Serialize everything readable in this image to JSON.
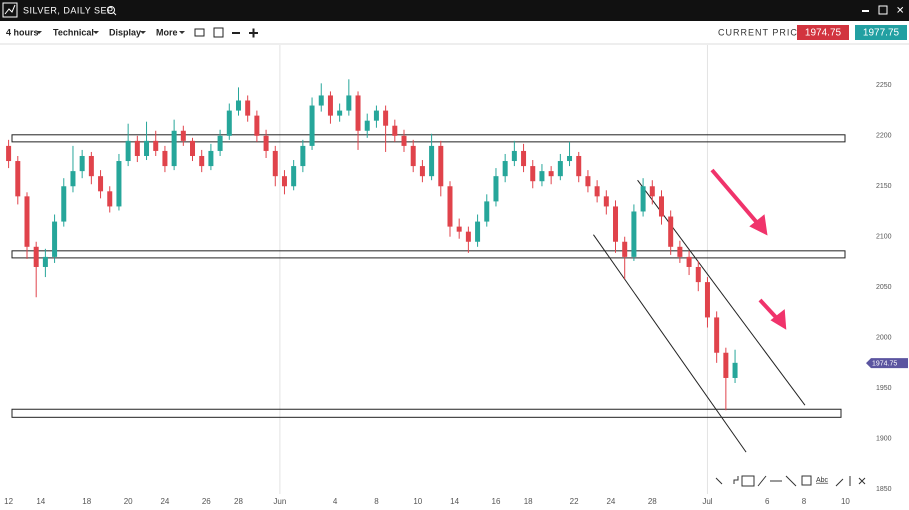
{
  "header": {
    "title": "SILVER, DAILY SEP"
  },
  "toolbar": {
    "interval": "4 hours",
    "menus": [
      "Technical",
      "Display",
      "More"
    ],
    "current_price_label": "CURRENT PRICE:",
    "bid": 1974.75,
    "ask": 1977.75
  },
  "drawing_tools": {
    "text_tool": "Abc"
  },
  "chart_data": {
    "type": "candlestick",
    "candles": [
      [
        2190,
        2196,
        2168,
        2175
      ],
      [
        2175,
        2180,
        2132,
        2140
      ],
      [
        2140,
        2144,
        2078,
        2090
      ],
      [
        2090,
        2095,
        2040,
        2070
      ],
      [
        2070,
        2088,
        2060,
        2080
      ],
      [
        2080,
        2122,
        2074,
        2115
      ],
      [
        2115,
        2158,
        2110,
        2150
      ],
      [
        2150,
        2190,
        2144,
        2165
      ],
      [
        2165,
        2186,
        2158,
        2180
      ],
      [
        2180,
        2184,
        2152,
        2160
      ],
      [
        2160,
        2166,
        2138,
        2145
      ],
      [
        2145,
        2150,
        2124,
        2130
      ],
      [
        2130,
        2182,
        2126,
        2175
      ],
      [
        2175,
        2212,
        2170,
        2195
      ],
      [
        2195,
        2200,
        2174,
        2180
      ],
      [
        2180,
        2214,
        2176,
        2195
      ],
      [
        2195,
        2205,
        2180,
        2185
      ],
      [
        2185,
        2190,
        2164,
        2170
      ],
      [
        2170,
        2216,
        2166,
        2205
      ],
      [
        2205,
        2210,
        2190,
        2195
      ],
      [
        2195,
        2198,
        2175,
        2180
      ],
      [
        2180,
        2186,
        2164,
        2170
      ],
      [
        2170,
        2192,
        2166,
        2185
      ],
      [
        2185,
        2206,
        2180,
        2200
      ],
      [
        2200,
        2232,
        2196,
        2225
      ],
      [
        2225,
        2248,
        2220,
        2235
      ],
      [
        2235,
        2240,
        2214,
        2220
      ],
      [
        2220,
        2225,
        2194,
        2200
      ],
      [
        2200,
        2206,
        2178,
        2185
      ],
      [
        2185,
        2190,
        2150,
        2160
      ],
      [
        2160,
        2166,
        2142,
        2150
      ],
      [
        2150,
        2176,
        2146,
        2170
      ],
      [
        2170,
        2196,
        2164,
        2190
      ],
      [
        2190,
        2238,
        2186,
        2230
      ],
      [
        2230,
        2252,
        2224,
        2240
      ],
      [
        2240,
        2244,
        2212,
        2220
      ],
      [
        2220,
        2232,
        2214,
        2225
      ],
      [
        2225,
        2256,
        2220,
        2240
      ],
      [
        2240,
        2244,
        2186,
        2205
      ],
      [
        2205,
        2222,
        2198,
        2215
      ],
      [
        2215,
        2230,
        2208,
        2225
      ],
      [
        2225,
        2230,
        2184,
        2210
      ],
      [
        2210,
        2216,
        2194,
        2200
      ],
      [
        2200,
        2206,
        2184,
        2190
      ],
      [
        2190,
        2196,
        2164,
        2170
      ],
      [
        2170,
        2176,
        2154,
        2160
      ],
      [
        2160,
        2202,
        2156,
        2190
      ],
      [
        2190,
        2195,
        2140,
        2150
      ],
      [
        2150,
        2155,
        2100,
        2110
      ],
      [
        2110,
        2118,
        2098,
        2105
      ],
      [
        2105,
        2110,
        2084,
        2095
      ],
      [
        2095,
        2122,
        2090,
        2115
      ],
      [
        2115,
        2142,
        2110,
        2135
      ],
      [
        2135,
        2168,
        2130,
        2160
      ],
      [
        2160,
        2182,
        2154,
        2175
      ],
      [
        2175,
        2195,
        2170,
        2185
      ],
      [
        2185,
        2192,
        2164,
        2170
      ],
      [
        2170,
        2176,
        2148,
        2155
      ],
      [
        2155,
        2172,
        2150,
        2165
      ],
      [
        2165,
        2170,
        2152,
        2160
      ],
      [
        2160,
        2182,
        2156,
        2175
      ],
      [
        2175,
        2194,
        2170,
        2180
      ],
      [
        2180,
        2184,
        2154,
        2160
      ],
      [
        2160,
        2166,
        2144,
        2150
      ],
      [
        2150,
        2156,
        2134,
        2140
      ],
      [
        2140,
        2146,
        2122,
        2130
      ],
      [
        2130,
        2136,
        2084,
        2095
      ],
      [
        2095,
        2100,
        2058,
        2080
      ],
      [
        2080,
        2132,
        2076,
        2125
      ],
      [
        2125,
        2158,
        2120,
        2150
      ],
      [
        2150,
        2156,
        2132,
        2140
      ],
      [
        2140,
        2146,
        2112,
        2120
      ],
      [
        2120,
        2126,
        2082,
        2090
      ],
      [
        2090,
        2096,
        2074,
        2080
      ],
      [
        2080,
        2086,
        2062,
        2070
      ],
      [
        2070,
        2076,
        2046,
        2055
      ],
      [
        2055,
        2060,
        2010,
        2020
      ],
      [
        2020,
        2026,
        1975,
        1985
      ],
      [
        1985,
        1990,
        1928,
        1960
      ],
      [
        1960,
        1988,
        1955,
        1975
      ]
    ],
    "up_color": "#26a69a",
    "down_color": "#e0434b",
    "xlim": [
      0,
      92
    ],
    "xticks": [
      {
        "value": 0.5,
        "label": "12"
      },
      {
        "value": 4,
        "label": "14"
      },
      {
        "value": 9,
        "label": "18"
      },
      {
        "value": 13.5,
        "label": "20"
      },
      {
        "value": 17.5,
        "label": "24"
      },
      {
        "value": 22,
        "label": "26"
      },
      {
        "value": 25.5,
        "label": "28"
      },
      {
        "value": 30,
        "label": "Jun"
      },
      {
        "value": 36,
        "label": "4"
      },
      {
        "value": 40.5,
        "label": "8"
      },
      {
        "value": 45,
        "label": "10"
      },
      {
        "value": 49,
        "label": "14"
      },
      {
        "value": 53.5,
        "label": "16"
      },
      {
        "value": 57,
        "label": "18"
      },
      {
        "value": 62,
        "label": "22"
      },
      {
        "value": 66,
        "label": "24"
      },
      {
        "value": 70.5,
        "label": "28"
      },
      {
        "value": 76.5,
        "label": "Jul"
      },
      {
        "value": 83,
        "label": "6"
      },
      {
        "value": 87,
        "label": "8"
      },
      {
        "value": 91.5,
        "label": "10"
      }
    ],
    "separator_ticks": [
      7,
      17
    ],
    "ylim": [
      1845,
      2290
    ],
    "yticks": [
      1850,
      1900,
      1950,
      2000,
      2050,
      2100,
      2150,
      2200,
      2250
    ],
    "current_price": 1974.75,
    "zones": [
      [
        2194,
        2201
      ],
      [
        2079,
        2086
      ],
      [
        1921,
        1929
      ]
    ],
    "trendlines": [
      [
        [
          68.9,
          2156
        ],
        [
          87.1,
          1933
        ]
      ],
      [
        [
          64.1,
          2102
        ],
        [
          80.7,
          1886.5
        ]
      ]
    ]
  }
}
